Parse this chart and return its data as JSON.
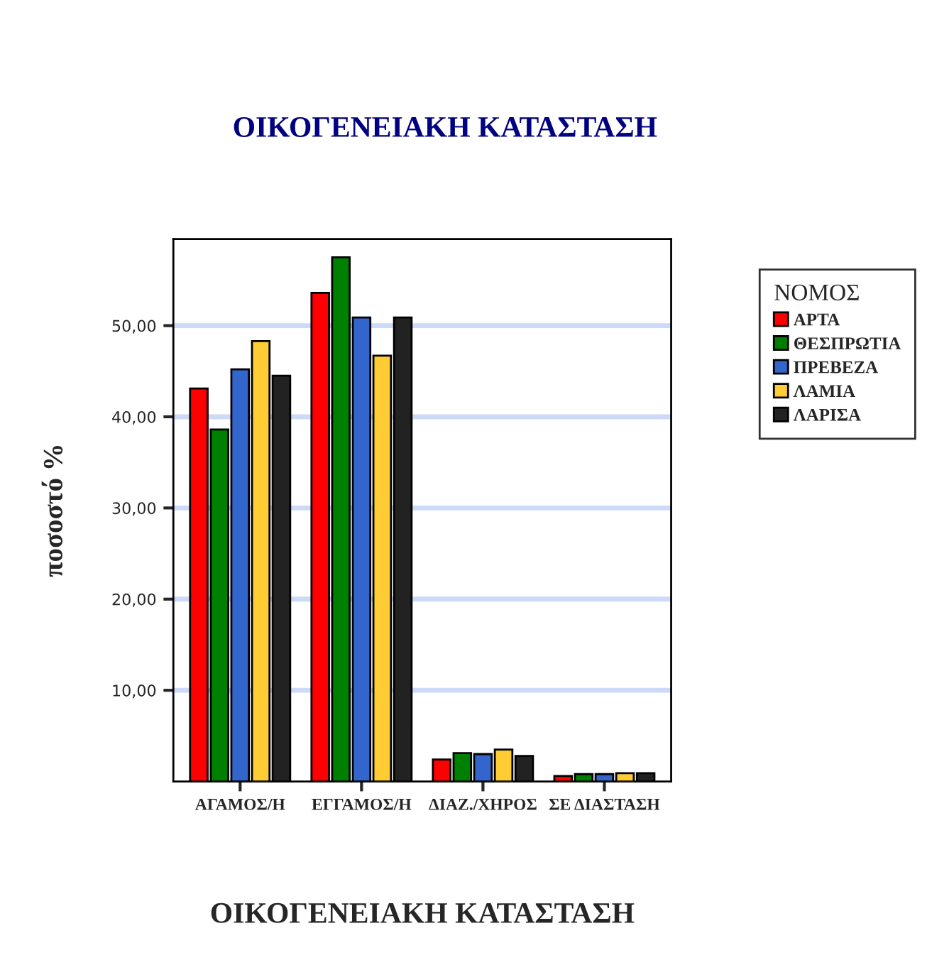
{
  "chart_data": {
    "type": "bar",
    "title": "ΟΙΚΟΓΕΝΕΙΑΚΗ ΚΑΤΑΣΤΑΣΗ",
    "xlabel": "ΟΙΚΟΓΕΝΕΙΑΚΗ ΚΑΤΑΣΤΑΣΗ",
    "ylabel": "ποσοστό %",
    "legend_title": "ΝΟΜΟΣ",
    "categories": [
      "ΑΓΑΜΟΣ/Η",
      "ΕΓΓΑΜΟΣ/Η",
      "ΔΙΑΖ./ΧΗΡΟΣ",
      "ΣΕ ΔΙΑΣΤΑΣΗ"
    ],
    "series": [
      {
        "name": "ΑΡΤΑ",
        "color": "#ff0000",
        "values": [
          43.1,
          53.6,
          2.4,
          0.6
        ]
      },
      {
        "name": "ΘΕΣΠΡΩΤΙΑ",
        "color": "#008000",
        "values": [
          38.6,
          57.5,
          3.1,
          0.8
        ]
      },
      {
        "name": "ΠΡΕΒΕΖΑ",
        "color": "#3366cc",
        "values": [
          45.2,
          50.9,
          3.0,
          0.8
        ]
      },
      {
        "name": "ΛΑΜΙΑ",
        "color": "#ffcc33",
        "values": [
          48.3,
          46.7,
          3.5,
          0.9
        ]
      },
      {
        "name": "ΛΑΡΙΣΑ",
        "color": "#222222",
        "values": [
          44.5,
          50.9,
          2.8,
          0.9
        ]
      }
    ],
    "ylim": [
      0,
      59.5
    ],
    "yticks": [
      {
        "value": 10,
        "label": "10,00"
      },
      {
        "value": 20,
        "label": "20,00"
      },
      {
        "value": 30,
        "label": "30,00"
      },
      {
        "value": 40,
        "label": "40,00"
      },
      {
        "value": 50,
        "label": "50,00"
      }
    ],
    "grid": "y",
    "legend": "right"
  }
}
